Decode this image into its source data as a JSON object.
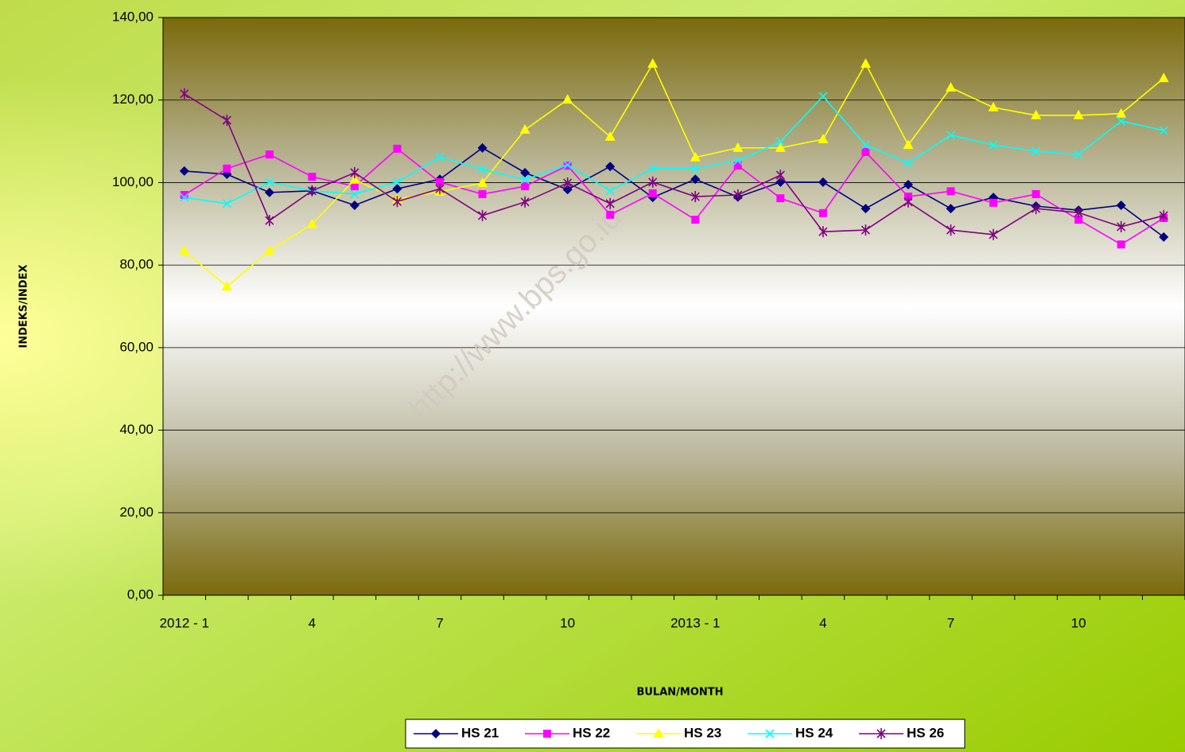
{
  "chart_data": {
    "type": "line",
    "x_label": "BULAN/MONTH",
    "y_label": "INDEKS/INDEX",
    "watermark": "http://www.bps.go.id",
    "categories": [
      "2012 - 1",
      null,
      null,
      "4",
      null,
      null,
      "7",
      null,
      null,
      "10",
      null,
      null,
      "2013 - 1",
      null,
      null,
      "4",
      null,
      null,
      "7",
      null,
      null,
      "10",
      null,
      null
    ],
    "ylim": [
      0,
      140
    ],
    "yticks": [
      {
        "value": 0,
        "label": "0,00"
      },
      {
        "value": 20,
        "label": "20,00"
      },
      {
        "value": 40,
        "label": "40,00"
      },
      {
        "value": 60,
        "label": "60,00"
      },
      {
        "value": 80,
        "label": "80,00"
      },
      {
        "value": 100,
        "label": "100,00"
      },
      {
        "value": 120,
        "label": "120,00"
      },
      {
        "value": 140,
        "label": "140,00"
      }
    ],
    "grid": true,
    "legend": "bottom",
    "series": [
      {
        "name": "HS 21",
        "color": "#000080",
        "marker": "diamond",
        "values": [
          102.8,
          102.0,
          97.6,
          98.0,
          94.5,
          98.5,
          100.8,
          108.4,
          102.4,
          98.3,
          103.9,
          96.4,
          100.8,
          96.5,
          100.1,
          100.1,
          93.7,
          99.5,
          93.7,
          96.4,
          94.3,
          93.3,
          94.5,
          86.8
        ]
      },
      {
        "name": "HS 22",
        "color": "#ff00ff",
        "marker": "square",
        "values": [
          97.0,
          103.4,
          106.8,
          101.4,
          99.1,
          108.2,
          100.1,
          97.2,
          99.1,
          104.1,
          92.2,
          97.4,
          91.0,
          104.1,
          96.2,
          92.6,
          107.4,
          96.6,
          97.9,
          95.1,
          97.2,
          91.0,
          85.0,
          91.4
        ]
      },
      {
        "name": "HS 23",
        "color": "#ffff00",
        "marker": "triangle",
        "values": [
          83.5,
          74.8,
          83.5,
          89.9,
          100.7,
          96.0,
          97.8,
          99.9,
          112.8,
          120.1,
          111.1,
          128.8,
          106.1,
          108.4,
          108.4,
          110.5,
          128.8,
          109.1,
          123.0,
          118.2,
          116.3,
          116.3,
          116.7,
          125.3
        ]
      },
      {
        "name": "HS 24",
        "color": "#00ffff",
        "marker": "x",
        "values": [
          96.4,
          94.9,
          100.1,
          98.0,
          97.2,
          100.1,
          106.2,
          103.2,
          100.7,
          104.3,
          98.0,
          103.4,
          103.4,
          105.3,
          109.9,
          120.9,
          109.1,
          104.7,
          111.5,
          109.1,
          107.6,
          106.8,
          114.9,
          112.6
        ]
      },
      {
        "name": "HS 26",
        "color": "#800080",
        "marker": "star",
        "values": [
          121.5,
          115.1,
          90.8,
          98.0,
          102.4,
          95.4,
          98.5,
          92.0,
          95.3,
          99.9,
          94.9,
          100.1,
          96.6,
          97.0,
          101.8,
          88.1,
          88.5,
          95.3,
          88.5,
          87.4,
          93.7,
          92.7,
          89.3,
          92.0
        ]
      }
    ]
  }
}
